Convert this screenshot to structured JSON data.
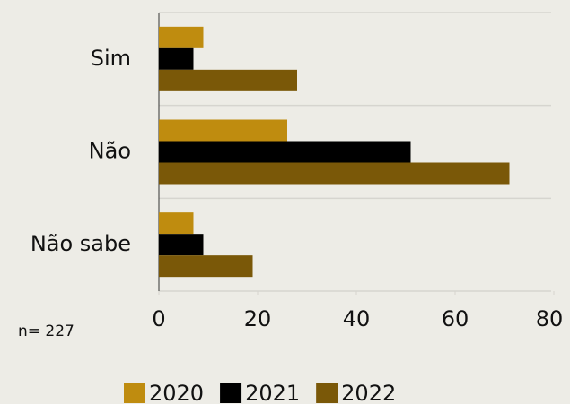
{
  "chart_data": {
    "type": "hbar",
    "categories": [
      "Sim",
      "Não",
      "Não sabe"
    ],
    "series": [
      {
        "name": "2020",
        "color": "#bf8c0f",
        "values": [
          9,
          26,
          7
        ]
      },
      {
        "name": "2021",
        "color": "#000000",
        "values": [
          7,
          51,
          9
        ]
      },
      {
        "name": "2022",
        "color": "#7a5808",
        "values": [
          28,
          71,
          19
        ]
      }
    ],
    "xlim": [
      0,
      80
    ],
    "xticks": [
      0,
      20,
      40,
      60,
      80
    ],
    "annotation": "n= 227",
    "legend": "bottom"
  }
}
